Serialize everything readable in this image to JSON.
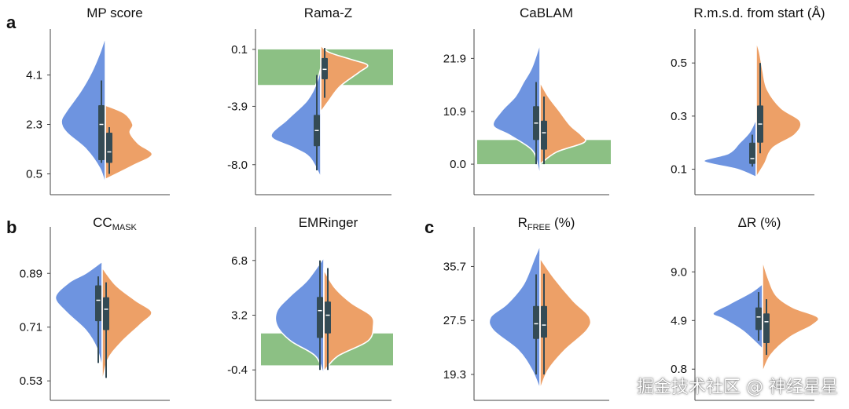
{
  "figure": {
    "panel_letters": [
      "a",
      "b",
      "c"
    ],
    "colors": {
      "blue": "#6e94e0",
      "orange": "#eda067",
      "green": "#8cc084",
      "box": "#344b55",
      "axis": "#444444",
      "text": "#111111"
    }
  },
  "chart_data": [
    {
      "type": "violin",
      "title": "MP score",
      "ylim": [
        -0.2,
        5.6
      ],
      "ticks": [
        4.1,
        2.3,
        0.5
      ],
      "tick_labels": [
        "4.1",
        "2.3",
        "0.5"
      ],
      "series": [
        {
          "name": "blue",
          "shape": {
            "y": [
              0.1,
              0.7,
              1.4,
              2.0,
              2.4,
              2.8,
              3.5,
              4.2,
              4.9,
              5.5
            ],
            "w": [
              0,
              0.1,
              0.35,
              0.7,
              0.8,
              0.7,
              0.45,
              0.25,
              0.1,
              0
            ]
          },
          "box": {
            "q1": 1.0,
            "median": 2.3,
            "q3": 3.0,
            "lo": 0.9,
            "hi": 3.9
          }
        },
        {
          "name": "orange",
          "shape": {
            "y": [
              0.3,
              0.8,
              1.2,
              1.6,
              2.0,
              2.3,
              2.7,
              3.0
            ],
            "w": [
              0,
              0.5,
              0.85,
              0.6,
              0.45,
              0.5,
              0.35,
              0
            ]
          },
          "box": {
            "q1": 0.9,
            "median": 1.3,
            "q3": 2.0,
            "lo": 0.5,
            "hi": 2.2
          }
        }
      ],
      "bands": []
    },
    {
      "type": "violin",
      "title": "Rama-Z",
      "ylim": [
        -10.0,
        1.2
      ],
      "ticks": [
        0.1,
        -3.9,
        -8.0
      ],
      "tick_labels": [
        "0.1",
        "-3.9",
        "-8.0"
      ],
      "series": [
        {
          "name": "blue",
          "shape": {
            "y": [
              -8.9,
              -7.5,
              -6.8,
              -6.0,
              -4.8,
              -3.5,
              -2.3,
              -1.2
            ],
            "w": [
              0,
              0.2,
              0.5,
              0.9,
              0.6,
              0.25,
              0.08,
              0
            ]
          },
          "box": {
            "q1": -6.7,
            "median": -5.6,
            "q3": -4.5,
            "lo": -8.4,
            "hi": -1.7
          }
        },
        {
          "name": "orange",
          "shape": {
            "y": [
              -4.3,
              -3.5,
              -2.5,
              -1.5,
              -1.0,
              -0.6,
              -0.1,
              0.4
            ],
            "w": [
              0,
              0.15,
              0.35,
              0.7,
              0.85,
              0.55,
              0.15,
              0
            ]
          },
          "box": {
            "q1": -2.0,
            "median": -1.3,
            "q3": -0.5,
            "lo": -3.3,
            "hi": 0.2
          }
        }
      ],
      "bands": [
        {
          "from": -2.4,
          "to": 0.1
        }
      ]
    },
    {
      "type": "violin",
      "title": "CaBLAM",
      "ylim": [
        -6.0,
        27.0
      ],
      "ticks": [
        21.9,
        10.9,
        0.0
      ],
      "tick_labels": [
        "21.9",
        "10.9",
        "0.0"
      ],
      "series": [
        {
          "name": "blue",
          "shape": {
            "y": [
              -3.0,
              0.0,
              3.0,
              6.0,
              8.0,
              11.0,
              14.0,
              17.0,
              20.0,
              25.0
            ],
            "w": [
              0,
              0.05,
              0.15,
              0.55,
              0.85,
              0.7,
              0.45,
              0.3,
              0.15,
              0
            ]
          },
          "box": {
            "q1": 5.0,
            "median": 8.5,
            "q3": 12.0,
            "lo": 0.0,
            "hi": 17.0
          }
        },
        {
          "name": "orange",
          "shape": {
            "y": [
              0.0,
              2.5,
              4.5,
              6.0,
              8.0,
              11.0,
              14.0,
              17.0
            ],
            "w": [
              0,
              0.3,
              0.8,
              0.75,
              0.55,
              0.35,
              0.15,
              0
            ]
          },
          "box": {
            "q1": 3.0,
            "median": 6.5,
            "q3": 9.0,
            "lo": 0.0,
            "hi": 14.0
          }
        }
      ],
      "bands": [
        {
          "from": 0.0,
          "to": 5.0
        }
      ]
    },
    {
      "type": "violin",
      "title": "R.m.s.d. from start (Å)",
      "ylim": [
        0.01,
        0.61
      ],
      "ticks": [
        0.5,
        0.3,
        0.1
      ],
      "tick_labels": [
        "0.5",
        "0.3",
        "0.1"
      ],
      "series": [
        {
          "name": "blue",
          "shape": {
            "y": [
              0.07,
              0.1,
              0.13,
              0.16,
              0.2,
              0.24,
              0.29
            ],
            "w": [
              0,
              0.35,
              0.95,
              0.5,
              0.3,
              0.12,
              0
            ]
          },
          "box": {
            "q1": 0.12,
            "median": 0.14,
            "q3": 0.2,
            "lo": 0.11,
            "hi": 0.23
          }
        },
        {
          "name": "orange",
          "shape": {
            "y": [
              0.07,
              0.12,
              0.18,
              0.23,
              0.28,
              0.33,
              0.4,
              0.47,
              0.54,
              0.58
            ],
            "w": [
              0,
              0.15,
              0.3,
              0.7,
              0.8,
              0.45,
              0.2,
              0.12,
              0.06,
              0
            ]
          },
          "box": {
            "q1": 0.2,
            "median": 0.27,
            "q3": 0.34,
            "lo": 0.16,
            "hi": 0.5
          }
        }
      ],
      "bands": []
    },
    {
      "type": "violin",
      "title": "CC",
      "title_sub": "MASK",
      "ylim": [
        0.47,
        1.03
      ],
      "ticks": [
        0.89,
        0.71,
        0.53
      ],
      "tick_labels": [
        "0.89",
        "0.71",
        "0.53"
      ],
      "series": [
        {
          "name": "blue",
          "shape": {
            "y": [
              0.57,
              0.64,
              0.7,
              0.76,
              0.81,
              0.86,
              0.89,
              0.93
            ],
            "w": [
              0,
              0.1,
              0.3,
              0.65,
              0.85,
              0.6,
              0.3,
              0
            ]
          },
          "box": {
            "q1": 0.73,
            "median": 0.8,
            "q3": 0.85,
            "lo": 0.59,
            "hi": 0.88
          }
        },
        {
          "name": "orange",
          "shape": {
            "y": [
              0.52,
              0.6,
              0.66,
              0.72,
              0.76,
              0.8,
              0.85,
              0.91
            ],
            "w": [
              0,
              0.1,
              0.35,
              0.7,
              0.9,
              0.6,
              0.25,
              0
            ]
          },
          "box": {
            "q1": 0.7,
            "median": 0.77,
            "q3": 0.81,
            "lo": 0.54,
            "hi": 0.86
          }
        }
      ],
      "bands": []
    },
    {
      "type": "violin",
      "title": "EMRinger",
      "ylim": [
        -2.3,
        8.7
      ],
      "ticks": [
        6.8,
        3.2,
        -0.4
      ],
      "tick_labels": [
        "6.8",
        "3.2",
        "-0.4"
      ],
      "series": [
        {
          "name": "blue",
          "shape": {
            "y": [
              -0.8,
              0.5,
              1.5,
              2.5,
              3.5,
              4.5,
              5.5,
              7.0
            ],
            "w": [
              0,
              0.15,
              0.6,
              0.85,
              0.85,
              0.6,
              0.3,
              0
            ]
          },
          "box": {
            "q1": 1.7,
            "median": 3.5,
            "q3": 4.4,
            "lo": -0.4,
            "hi": 6.8
          }
        },
        {
          "name": "orange",
          "shape": {
            "y": [
              -0.5,
              0.5,
              1.5,
              2.5,
              3.2,
              4.0,
              5.0,
              6.2
            ],
            "w": [
              0,
              0.25,
              0.8,
              0.9,
              0.85,
              0.5,
              0.2,
              0
            ]
          },
          "box": {
            "q1": 2.0,
            "median": 3.2,
            "q3": 4.1,
            "lo": -0.4,
            "hi": 6.3
          }
        }
      ],
      "bands": [
        {
          "from": -0.1,
          "to": 2.0
        }
      ]
    },
    {
      "type": "violin",
      "title": "R",
      "title_sub": "FREE",
      "title_suffix": " (%)",
      "ylim": [
        15.6,
        41.0
      ],
      "ticks": [
        35.7,
        27.5,
        19.3
      ],
      "tick_labels": [
        "35.7",
        "27.5",
        "19.3"
      ],
      "series": [
        {
          "name": "blue",
          "shape": {
            "y": [
              17.0,
              20.0,
              23.0,
              26.0,
              28.0,
              30.0,
              33.0,
              37.0,
              39.0
            ],
            "w": [
              0,
              0.15,
              0.4,
              0.85,
              0.9,
              0.6,
              0.3,
              0.1,
              0
            ]
          },
          "box": {
            "q1": 24.7,
            "median": 27.0,
            "q3": 29.7,
            "lo": 19.3,
            "hi": 34.5
          }
        },
        {
          "name": "orange",
          "shape": {
            "y": [
              17.0,
              20.0,
              23.0,
              26.0,
              28.0,
              30.5,
              34.0,
              37.0
            ],
            "w": [
              0,
              0.15,
              0.45,
              0.85,
              0.9,
              0.6,
              0.25,
              0
            ]
          },
          "box": {
            "q1": 24.9,
            "median": 26.8,
            "q3": 29.7,
            "lo": 19.3,
            "hi": 34.6
          }
        }
      ],
      "bands": []
    },
    {
      "type": "violin",
      "title": "ΔR (%)",
      "ylim": [
        -1.7,
        12.4
      ],
      "ticks": [
        9.0,
        4.9,
        0.8
      ],
      "tick_labels": [
        "9.0",
        "4.9",
        "0.8"
      ],
      "series": [
        {
          "name": "blue",
          "shape": {
            "y": [
              2.5,
              4.0,
              5.0,
              5.5,
              6.3,
              7.3,
              8.0
            ],
            "w": [
              0,
              0.35,
              0.7,
              0.9,
              0.6,
              0.2,
              0
            ]
          },
          "box": {
            "q1": 4.1,
            "median": 5.2,
            "q3": 6.0,
            "lo": 3.2,
            "hi": 7.3
          }
        },
        {
          "name": "orange",
          "shape": {
            "y": [
              0.5,
              2.0,
              3.5,
              4.5,
              5.2,
              6.0,
              7.0,
              8.5,
              10.0
            ],
            "w": [
              0,
              0.15,
              0.5,
              0.9,
              1.0,
              0.55,
              0.25,
              0.1,
              0
            ]
          },
          "box": {
            "q1": 3.0,
            "median": 4.8,
            "q3": 5.5,
            "lo": 2.0,
            "hi": 6.7
          }
        }
      ],
      "bands": []
    }
  ],
  "watermark": "掘金技术社区 @ 神经星星"
}
